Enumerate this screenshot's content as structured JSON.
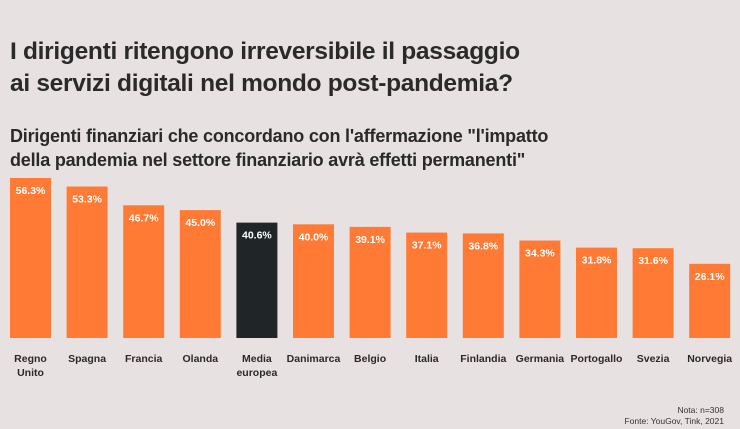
{
  "chart_data": {
    "type": "bar",
    "title": "I dirigenti ritengono irreversibile il passaggio ai servizi digitali nel mondo post-pandemia?",
    "subtitle": "Dirigenti finanziari che concordano con l'affermazione \"l'impatto della pandemia nel settore finanziario avrà effetti permanenti\"",
    "xlabel": "",
    "ylabel": "",
    "ylim": [
      0,
      60
    ],
    "grid": false,
    "categories": [
      [
        "Regno",
        "Unito"
      ],
      [
        "Spagna"
      ],
      [
        "Francia"
      ],
      [
        "Olanda"
      ],
      [
        "Media",
        "europea"
      ],
      [
        "Danimarca"
      ],
      [
        "Belgio"
      ],
      [
        "Italia"
      ],
      [
        "Finlandia"
      ],
      [
        "Germania"
      ],
      [
        "Portogallo"
      ],
      [
        "Svezia"
      ],
      [
        "Norvegia"
      ]
    ],
    "values": [
      56.3,
      53.3,
      46.7,
      45.0,
      40.6,
      40.0,
      39.1,
      37.1,
      36.8,
      34.3,
      31.8,
      31.6,
      26.1
    ],
    "labels": [
      "56.3%",
      "53.3%",
      "46.7%",
      "45.0%",
      "40.6%",
      "40.0%",
      "39.1%",
      "37.1%",
      "36.8%",
      "34.3%",
      "31.8%",
      "31.6%",
      "26.1%"
    ],
    "highlight_index": 4,
    "colors": {
      "bar": "#ff7a35",
      "highlight": "#202628",
      "label": "#ffffff",
      "category": "#2a2a2a"
    }
  },
  "header": {
    "title_lines": [
      "I dirigenti ritengono irreversibile il passaggio",
      "ai servizi digitali nel mondo post-pandemia?"
    ],
    "subtitle_lines": [
      "Dirigenti finanziari che concordano con l'affermazione \"l'impatto",
      "della pandemia nel settore finanziario avrà effetti permanenti\""
    ]
  },
  "footer": {
    "note": "Nota: n=308",
    "source": "Fonte: YouGov, Tink, 2021"
  }
}
